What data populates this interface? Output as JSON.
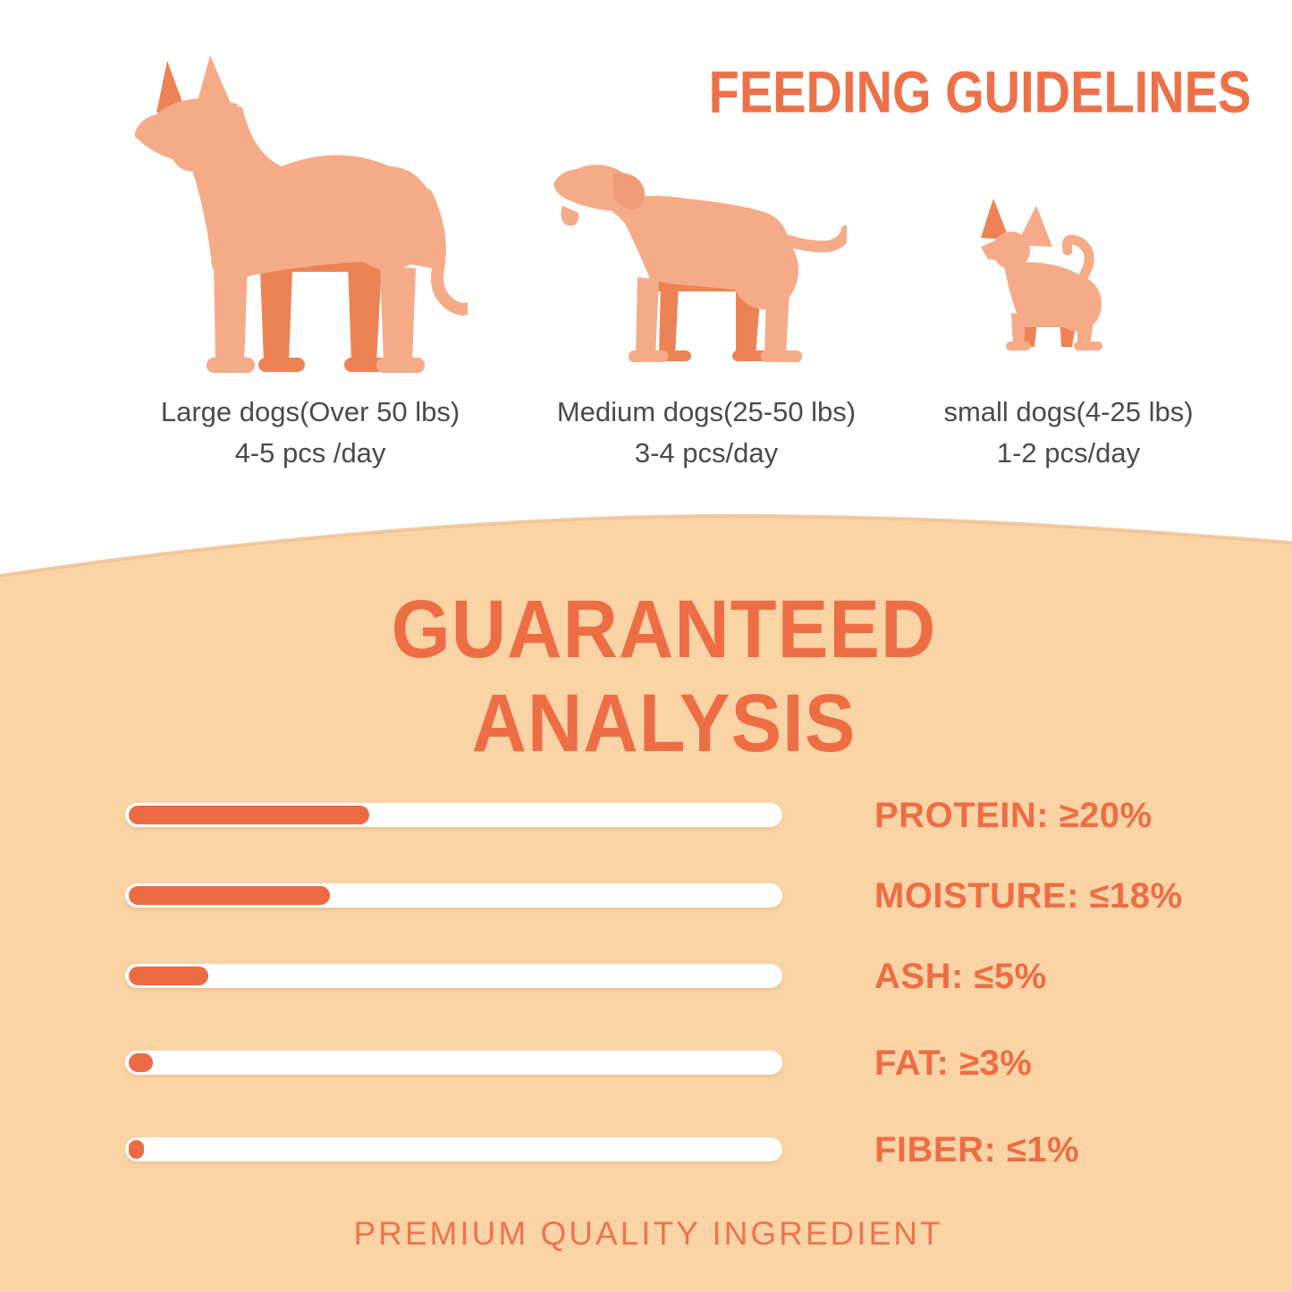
{
  "colors": {
    "accent_orange": "#ED6E45",
    "heading_orange": "#ED7148",
    "bar_fill_orange": "#EE6A42",
    "panel_peach": "#FBD4A6",
    "panel_edge_shade": "#F0C195",
    "dog_silhouette_light": "#F5AB88",
    "dog_silhouette_dark": "#ED8255",
    "caption_gray": "#4A4A4A",
    "bar_track_white": "#FFFFFF"
  },
  "feeding": {
    "title": "FEEDING GUIDELINES",
    "groups": [
      {
        "size": "large",
        "line1": "Large dogs(Over 50 lbs)",
        "line2": "4-5 pcs /day"
      },
      {
        "size": "medium",
        "line1": "Medium dogs(25-50 lbs)",
        "line2": "3-4 pcs/day"
      },
      {
        "size": "small",
        "line1": "small dogs(4-25 lbs)",
        "line2": "1-2 pcs/day"
      }
    ]
  },
  "analysis": {
    "title_line1": "GUARANTEED",
    "title_line2": "ANALYSIS",
    "rows": [
      {
        "label": "PROTEIN: ≥20%",
        "fill_pct": 37
      },
      {
        "label": "MOISTURE: ≤18%",
        "fill_pct": 31
      },
      {
        "label": "ASH: ≤5%",
        "fill_pct": 12.3
      },
      {
        "label": "FAT: ≥3%",
        "fill_pct": 3.7
      },
      {
        "label": "FIBER: ≤1%",
        "fill_pct": 2.4
      }
    ],
    "footer": "PREMIUM QUALITY INGREDIENT"
  },
  "chart_data": {
    "type": "bar",
    "orientation": "horizontal",
    "title": "GUARANTEED ANALYSIS",
    "categories": [
      "PROTEIN",
      "MOISTURE",
      "ASH",
      "FAT",
      "FIBER"
    ],
    "values": [
      20,
      18,
      5,
      3,
      1
    ],
    "qualifiers": [
      "≥",
      "≤",
      "≤",
      "≥",
      "≤"
    ],
    "unit": "%",
    "bar_visual_fill_pct_of_track": [
      37,
      31,
      12.3,
      3.7,
      2.4
    ],
    "bar_color": "#EE6A42",
    "track_color": "#FFFFFF",
    "grid": false,
    "legend": false
  }
}
